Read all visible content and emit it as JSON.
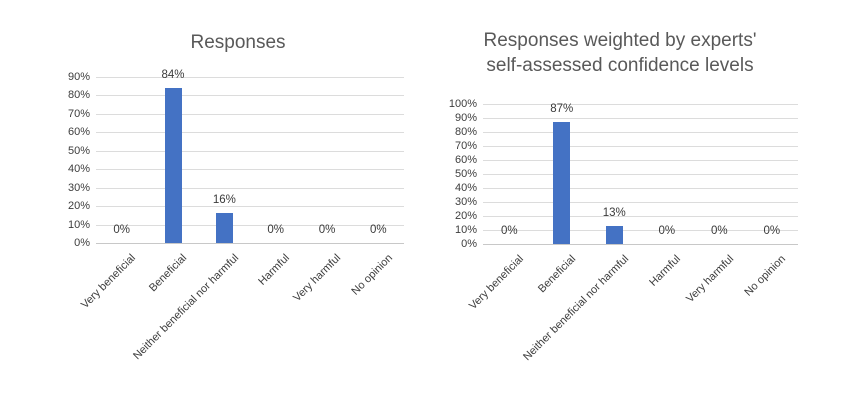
{
  "style": {
    "bar_color": "#4472C4",
    "gridline_color": "#dcdcdc",
    "axis_color": "#c8c8c8",
    "title_color": "#595959",
    "text_color": "#3d3d3d",
    "background": "#ffffff"
  },
  "chart_data": [
    {
      "type": "bar",
      "title": "Responses",
      "categories": [
        "Very beneficial",
        "Beneficial",
        "Neither beneficial nor harmful",
        "Harmful",
        "Very harmful",
        "No opinion"
      ],
      "values": [
        0,
        84,
        16,
        0,
        0,
        0
      ],
      "data_labels": [
        "0%",
        "84%",
        "16%",
        "0%",
        "0%",
        "0%"
      ],
      "ylim": [
        0,
        90
      ],
      "ytick_step": 10,
      "ytick_labels": [
        "90%",
        "80%",
        "70%",
        "60%",
        "50%",
        "40%",
        "30%",
        "20%",
        "10%",
        "0%"
      ],
      "xlabel": "",
      "ylabel": "",
      "grid": true,
      "legend": "none",
      "bar_color": "#4472C4"
    },
    {
      "type": "bar",
      "title": "Responses weighted by experts' self-assessed confidence levels",
      "title_lines": [
        "Responses weighted by experts'",
        "self-assessed confidence levels"
      ],
      "categories": [
        "Very beneficial",
        "Beneficial",
        "Neither beneficial nor harmful",
        "Harmful",
        "Very harmful",
        "No opinion"
      ],
      "values": [
        0,
        87,
        13,
        0,
        0,
        0
      ],
      "data_labels": [
        "0%",
        "87%",
        "13%",
        "0%",
        "0%",
        "0%"
      ],
      "ylim": [
        0,
        100
      ],
      "ytick_step": 10,
      "ytick_labels": [
        "100%",
        "90%",
        "80%",
        "70%",
        "60%",
        "50%",
        "40%",
        "30%",
        "20%",
        "10%",
        "0%"
      ],
      "xlabel": "",
      "ylabel": "",
      "grid": true,
      "legend": "none",
      "bar_color": "#4472C4"
    }
  ]
}
